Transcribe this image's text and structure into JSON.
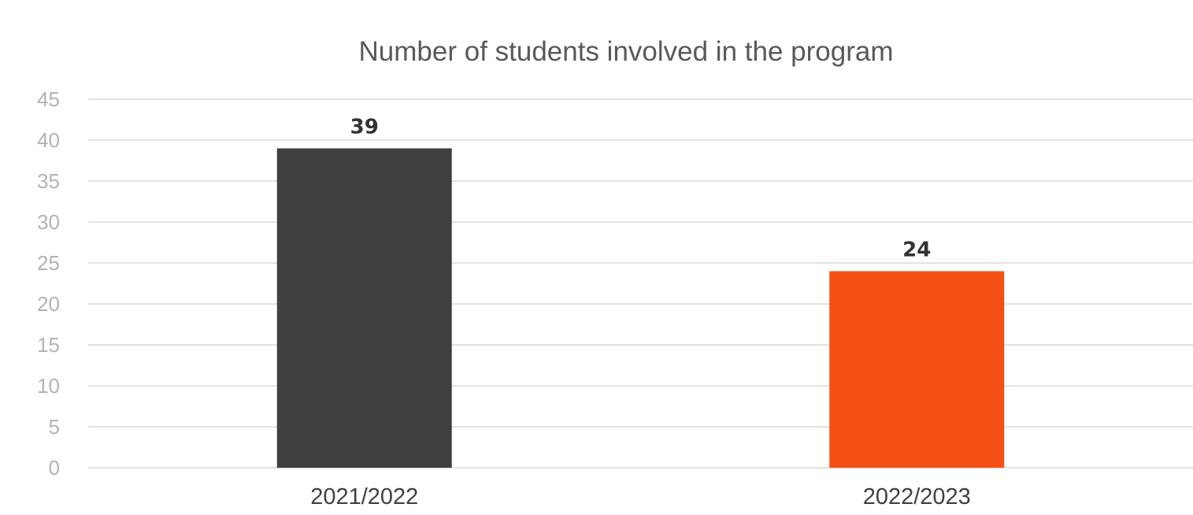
{
  "chart_data": {
    "type": "bar",
    "title": "Number of students involved in the program",
    "xlabel": "",
    "ylabel": "",
    "categories": [
      "2021/2022",
      "2022/2023"
    ],
    "values": [
      39,
      24
    ],
    "data_labels": [
      "39",
      "24"
    ],
    "bar_colors": [
      "#404040",
      "#f55014"
    ],
    "ylim": [
      0,
      45
    ],
    "y_ticks": [
      0,
      5,
      10,
      15,
      20,
      25,
      30,
      35,
      40,
      45
    ],
    "y_tick_labels": [
      "0",
      "5",
      "10",
      "15",
      "20",
      "25",
      "30",
      "35",
      "40",
      "45"
    ],
    "grid": true,
    "legend": "none"
  }
}
